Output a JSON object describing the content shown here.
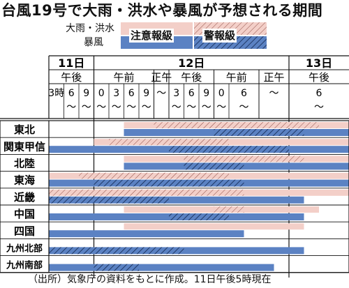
{
  "title": "台風19号で大雨・洪水や暴風が予想される期間",
  "legend": {
    "row_labels": [
      "大雨・洪水",
      "暴風"
    ],
    "levels": [
      "注意報級",
      "警報級"
    ],
    "colors": {
      "rain_advisory": "#f3cfc8",
      "rain_warning": "#f3cfc8",
      "rain_warning_hatch": "#8c4a42",
      "wind_advisory": "#5b82c3",
      "wind_warning": "#5b82c3",
      "wind_warning_hatch": "#10264f"
    }
  },
  "header": {
    "days": [
      "11日",
      "12日",
      "13日"
    ],
    "periods": [
      "午後",
      "午前",
      "正午",
      "午後",
      "午前",
      "正午",
      "午後"
    ],
    "hours": [
      "3時",
      "6\n～",
      "9\n～",
      "0\n～",
      "3\n～",
      "6\n～",
      "9\n～",
      "～",
      "3\n～",
      "6\n～",
      "9\n～",
      "0\n～",
      "6\n～",
      "～",
      "6\n～"
    ]
  },
  "chart_data": {
    "type": "gantt",
    "x_unit": "hours from 11日15時",
    "x_range": [
      0,
      60
    ],
    "regions": [
      {
        "name": "東北",
        "rain": [
          {
            "start": 15,
            "end": 21,
            "level": "advisory"
          },
          {
            "start": 21,
            "end": 54,
            "level": "warning"
          },
          {
            "start": 54,
            "end": 60,
            "level": "advisory"
          }
        ],
        "wind": [
          {
            "start": 15,
            "end": 33,
            "level": "advisory"
          },
          {
            "start": 33,
            "end": 51,
            "level": "warning"
          },
          {
            "start": 51,
            "end": 60,
            "level": "advisory"
          }
        ]
      },
      {
        "name": "関東甲信",
        "rain": [
          {
            "start": 9,
            "end": 12,
            "level": "advisory"
          },
          {
            "start": 12,
            "end": 36,
            "level": "warning"
          },
          {
            "start": 36,
            "end": 60,
            "level": "advisory"
          }
        ],
        "wind": [
          {
            "start": 0,
            "end": 24,
            "level": "advisory"
          },
          {
            "start": 24,
            "end": 48,
            "level": "warning"
          },
          {
            "start": 48,
            "end": 60,
            "level": "advisory"
          }
        ]
      },
      {
        "name": "北陸",
        "rain": [
          {
            "start": 15,
            "end": 27,
            "level": "advisory"
          },
          {
            "start": 27,
            "end": 51,
            "level": "warning"
          },
          {
            "start": 51,
            "end": 60,
            "level": "advisory"
          }
        ],
        "wind": [
          {
            "start": 15,
            "end": 27,
            "level": "advisory"
          },
          {
            "start": 27,
            "end": 39,
            "level": "warning"
          },
          {
            "start": 39,
            "end": 60,
            "level": "advisory"
          }
        ]
      },
      {
        "name": "東海",
        "rain": [
          {
            "start": 0,
            "end": 6,
            "level": "advisory"
          },
          {
            "start": 6,
            "end": 36,
            "level": "warning"
          },
          {
            "start": 36,
            "end": 60,
            "level": "advisory"
          }
        ],
        "wind": [
          {
            "start": 0,
            "end": 9,
            "level": "advisory"
          },
          {
            "start": 9,
            "end": 39,
            "level": "warning"
          },
          {
            "start": 39,
            "end": 60,
            "level": "advisory"
          }
        ]
      },
      {
        "name": "近畿",
        "rain": [
          {
            "start": 0,
            "end": 39,
            "level": "warning"
          },
          {
            "start": 39,
            "end": 60,
            "level": "advisory"
          }
        ],
        "wind": [
          {
            "start": 0,
            "end": 24,
            "level": "warning"
          },
          {
            "start": 24,
            "end": 51,
            "level": "advisory"
          }
        ]
      },
      {
        "name": "中国",
        "rain": [
          {
            "start": 15,
            "end": 33,
            "level": "advisory"
          },
          {
            "start": 33,
            "end": 39,
            "level": "warning"
          },
          {
            "start": 39,
            "end": 54,
            "level": "advisory"
          }
        ],
        "wind": [
          {
            "start": 0,
            "end": 24,
            "level": "advisory"
          },
          {
            "start": 24,
            "end": 36,
            "level": "warning"
          },
          {
            "start": 36,
            "end": 51,
            "level": "advisory"
          }
        ]
      },
      {
        "name": "四国",
        "rain": [
          {
            "start": 15,
            "end": 51,
            "level": "advisory"
          }
        ],
        "wind": [
          {
            "start": 0,
            "end": 39,
            "level": "advisory"
          }
        ]
      },
      {
        "name": "九州北部",
        "rain": [],
        "wind": [
          {
            "start": 0,
            "end": 27,
            "level": "warning"
          },
          {
            "start": 27,
            "end": 51,
            "level": "advisory"
          }
        ]
      },
      {
        "name": "九州南部",
        "rain": [],
        "wind": [
          {
            "start": 0,
            "end": 9,
            "level": "advisory"
          },
          {
            "start": 9,
            "end": 18,
            "level": "warning"
          },
          {
            "start": 18,
            "end": 45,
            "level": "advisory"
          }
        ]
      }
    ]
  },
  "footer": "（出所）気象庁の資料をもとに作成。11日午後5時現在"
}
